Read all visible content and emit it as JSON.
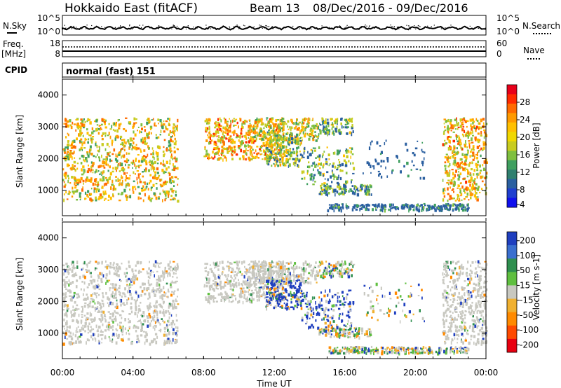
{
  "header": {
    "title": "Hokkaido East (fitACF)",
    "beam": "Beam 13",
    "date_range": "08/Dec/2016 - 09/Dec/2016"
  },
  "summary": {
    "nsky_label": "N.Sky",
    "nsky_ticks": [
      "10^5",
      "10^0"
    ],
    "nsearch_label": "N.Search",
    "nsearch_ticks": [
      "10^5",
      "10^0"
    ],
    "freq_label": "Freq.",
    "freq_unit": "[MHz]",
    "freq_ticks": [
      "18",
      "8"
    ],
    "nave_label": "Nave",
    "nave_ticks": [
      "60",
      "0"
    ],
    "cpid_label": "CPID",
    "cpid_value": "normal (fast) 151"
  },
  "chart_data": [
    {
      "type": "heatmap",
      "name": "power",
      "ylabel": "Slant Range [km]",
      "yticks": [
        "4000",
        "3000",
        "2000",
        "1000"
      ],
      "ylim": [
        200,
        4500
      ],
      "colorbar_label": "Power [dB]",
      "colorbar_ticks": [
        "28",
        "24",
        "20",
        "16",
        "12",
        "8",
        "4"
      ],
      "colorbar_colors": [
        "#e8001a",
        "#ff2a00",
        "#ff6a00",
        "#ff9a00",
        "#ffc000",
        "#f0d800",
        "#c8cc20",
        "#7fbf3f",
        "#3f9f5f",
        "#2f7f6f",
        "#2a5fa0",
        "#1f3fcf",
        "#1010ee"
      ]
    },
    {
      "type": "heatmap",
      "name": "velocity",
      "ylabel": "Slant Range [km]",
      "yticks": [
        "4000",
        "3000",
        "2000",
        "1000"
      ],
      "ylim": [
        200,
        4500
      ],
      "colorbar_label": "Velocity [m s-1]",
      "colorbar_ticks": [
        "200",
        "100",
        "50",
        "15",
        "-15",
        "-50",
        "-100",
        "-200"
      ],
      "colorbar_colors": [
        "#1f3fbf",
        "#3a6fcf",
        "#2f8f4f",
        "#5fbf3f",
        "#c8c8c0",
        "#f0b030",
        "#ff8a00",
        "#ff4a00",
        "#e80010"
      ]
    }
  ],
  "time_axis": {
    "ticks": [
      "00:00",
      "04:00",
      "08:00",
      "12:00",
      "16:00",
      "20:00",
      "00:00"
    ],
    "label": "Time UT"
  }
}
